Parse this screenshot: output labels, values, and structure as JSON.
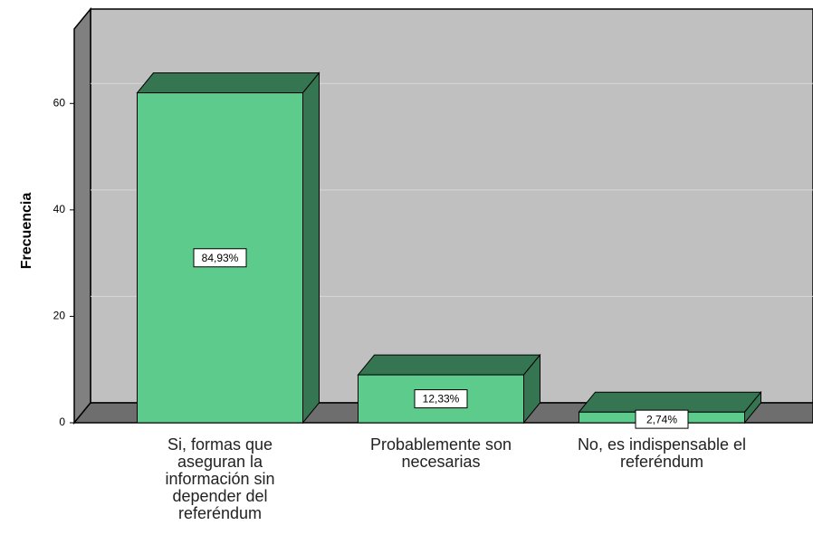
{
  "chart_data": {
    "type": "bar3d",
    "y_label": "Frecuencia",
    "categories": [
      "Si, formas que aseguran la información sin depender del referéndum",
      "Probablemente son necesarias",
      "No, es indispensable el referéndum"
    ],
    "values": [
      62,
      9,
      2
    ],
    "percent_values": [
      84.93,
      12.33,
      2.74
    ],
    "percent_labels": [
      "84,93%",
      "12,33%",
      "2,74%"
    ],
    "color": "#5ccb8c",
    "shade_color": "#367552",
    "ylim": [
      0,
      74
    ],
    "yticks": [
      0,
      20,
      40,
      60
    ],
    "grid": true
  }
}
